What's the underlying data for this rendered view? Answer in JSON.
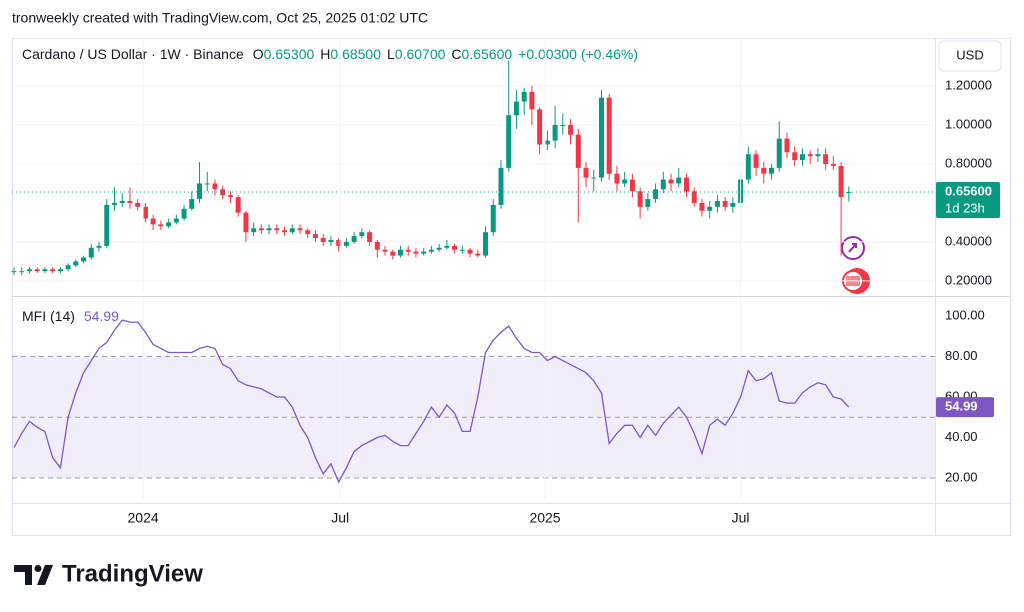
{
  "header": {
    "attribution": "tronweekly created with TradingView.com, Oct 25, 2025 01:02 UTC"
  },
  "footer": {
    "brand": "TradingView"
  },
  "chart_data": [
    {
      "type": "candlestick",
      "title": "Cardano / US Dollar · 1W · Binance",
      "legend": [
        {
          "label": "O",
          "value": "0.65300"
        },
        {
          "label": "H",
          "value": "0.68500"
        },
        {
          "label": "L",
          "value": "0.60700"
        },
        {
          "label": "C",
          "value": "0.65600"
        }
      ],
      "change": "+0.00300 (+0.46%)",
      "currency": "USD",
      "last_price_label": "0.65600",
      "countdown": "1d 23h",
      "colors": {
        "up": "#089981",
        "down": "#f23645"
      },
      "open": [
        0.25,
        0.25,
        0.25,
        0.26,
        0.25,
        0.26,
        0.25,
        0.26,
        0.28,
        0.3,
        0.32,
        0.37,
        0.38,
        0.59,
        0.6,
        0.61,
        0.6,
        0.58,
        0.52,
        0.49,
        0.48,
        0.5,
        0.52,
        0.57,
        0.62,
        0.7,
        0.7,
        0.67,
        0.64,
        0.63,
        0.55,
        0.45,
        0.47,
        0.46,
        0.47,
        0.46,
        0.45,
        0.47,
        0.46,
        0.44,
        0.42,
        0.4,
        0.41,
        0.38,
        0.4,
        0.43,
        0.45,
        0.4,
        0.36,
        0.35,
        0.33,
        0.36,
        0.35,
        0.34,
        0.35,
        0.36,
        0.37,
        0.38,
        0.36,
        0.36,
        0.34,
        0.33,
        0.45,
        0.59,
        0.78,
        1.05,
        1.12,
        1.17,
        1.08,
        0.9,
        0.92,
        1.0,
        1.0,
        0.95,
        0.78,
        0.73,
        0.73,
        1.14,
        0.75,
        0.7,
        0.72,
        0.66,
        0.58,
        0.62,
        0.67,
        0.72,
        0.7,
        0.73,
        0.66,
        0.6,
        0.56,
        0.58,
        0.61,
        0.58,
        0.6,
        0.72,
        0.85,
        0.78,
        0.75,
        0.78,
        0.93,
        0.86,
        0.82,
        0.85,
        0.84,
        0.85,
        0.8,
        0.79,
        0.653
      ],
      "high": [
        0.27,
        0.27,
        0.27,
        0.27,
        0.27,
        0.27,
        0.27,
        0.29,
        0.31,
        0.33,
        0.39,
        0.4,
        0.62,
        0.68,
        0.65,
        0.68,
        0.62,
        0.6,
        0.54,
        0.51,
        0.52,
        0.54,
        0.59,
        0.66,
        0.81,
        0.76,
        0.72,
        0.69,
        0.66,
        0.64,
        0.56,
        0.5,
        0.49,
        0.49,
        0.49,
        0.48,
        0.49,
        0.49,
        0.47,
        0.46,
        0.44,
        0.43,
        0.42,
        0.42,
        0.45,
        0.47,
        0.46,
        0.41,
        0.38,
        0.36,
        0.38,
        0.38,
        0.37,
        0.37,
        0.38,
        0.39,
        0.41,
        0.39,
        0.38,
        0.37,
        0.36,
        0.48,
        0.62,
        0.82,
        1.33,
        1.18,
        1.19,
        1.2,
        1.09,
        0.97,
        1.1,
        1.06,
        1.03,
        0.98,
        0.81,
        0.77,
        1.18,
        1.16,
        0.79,
        0.76,
        0.75,
        0.68,
        0.65,
        0.7,
        0.76,
        0.75,
        0.78,
        0.75,
        0.68,
        0.62,
        0.61,
        0.64,
        0.63,
        0.63,
        0.75,
        0.89,
        0.87,
        0.81,
        0.8,
        1.02,
        0.96,
        0.89,
        0.88,
        0.87,
        0.88,
        0.88,
        0.84,
        0.81,
        0.685
      ],
      "low": [
        0.23,
        0.23,
        0.24,
        0.24,
        0.24,
        0.24,
        0.24,
        0.25,
        0.27,
        0.29,
        0.31,
        0.35,
        0.37,
        0.56,
        0.58,
        0.57,
        0.56,
        0.5,
        0.46,
        0.46,
        0.47,
        0.49,
        0.51,
        0.56,
        0.6,
        0.66,
        0.64,
        0.62,
        0.6,
        0.53,
        0.4,
        0.43,
        0.44,
        0.44,
        0.44,
        0.43,
        0.44,
        0.44,
        0.42,
        0.4,
        0.38,
        0.38,
        0.35,
        0.37,
        0.39,
        0.42,
        0.38,
        0.32,
        0.33,
        0.31,
        0.32,
        0.33,
        0.32,
        0.33,
        0.34,
        0.35,
        0.36,
        0.34,
        0.34,
        0.32,
        0.32,
        0.32,
        0.43,
        0.57,
        0.76,
        0.98,
        1.05,
        1.0,
        0.85,
        0.87,
        0.88,
        0.95,
        0.9,
        0.5,
        0.68,
        0.66,
        0.71,
        0.72,
        0.66,
        0.68,
        0.63,
        0.52,
        0.56,
        0.6,
        0.65,
        0.66,
        0.68,
        0.63,
        0.58,
        0.53,
        0.52,
        0.55,
        0.56,
        0.55,
        0.58,
        0.7,
        0.74,
        0.7,
        0.72,
        0.76,
        0.83,
        0.79,
        0.79,
        0.8,
        0.81,
        0.77,
        0.77,
        0.33,
        0.607
      ],
      "close": [
        0.25,
        0.25,
        0.26,
        0.25,
        0.26,
        0.25,
        0.26,
        0.28,
        0.3,
        0.32,
        0.37,
        0.38,
        0.59,
        0.6,
        0.61,
        0.6,
        0.58,
        0.52,
        0.49,
        0.48,
        0.5,
        0.52,
        0.57,
        0.62,
        0.7,
        0.7,
        0.67,
        0.64,
        0.63,
        0.55,
        0.45,
        0.47,
        0.46,
        0.47,
        0.46,
        0.45,
        0.47,
        0.46,
        0.44,
        0.42,
        0.4,
        0.41,
        0.38,
        0.4,
        0.43,
        0.45,
        0.4,
        0.36,
        0.35,
        0.33,
        0.36,
        0.35,
        0.34,
        0.35,
        0.36,
        0.37,
        0.38,
        0.36,
        0.36,
        0.34,
        0.33,
        0.45,
        0.59,
        0.78,
        1.05,
        1.12,
        1.17,
        1.08,
        0.9,
        0.92,
        1.0,
        1.0,
        0.95,
        0.78,
        0.73,
        0.73,
        1.14,
        0.75,
        0.7,
        0.72,
        0.66,
        0.58,
        0.62,
        0.67,
        0.72,
        0.7,
        0.73,
        0.66,
        0.6,
        0.56,
        0.58,
        0.61,
        0.58,
        0.6,
        0.72,
        0.85,
        0.78,
        0.75,
        0.78,
        0.93,
        0.86,
        0.82,
        0.85,
        0.84,
        0.85,
        0.8,
        0.79,
        0.63,
        0.656
      ],
      "xlim": [
        -0.26,
        119.15
      ],
      "ylim": [
        0.138,
        1.436
      ],
      "yticks": [
        {
          "value": 0.2,
          "label": "0.20000"
        },
        {
          "value": 0.4,
          "label": "0.40000"
        },
        {
          "value": 0.8,
          "label": "0.80000"
        },
        {
          "value": 1.0,
          "label": "1.00000"
        },
        {
          "value": 1.2,
          "label": "1.20000"
        }
      ],
      "grid": true
    },
    {
      "type": "line",
      "series": [
        {
          "name": "MFI (14)",
          "color": "#7e57c2",
          "last_value_label": "54.99",
          "values": [
            35,
            42,
            48,
            45,
            43,
            30,
            25,
            50,
            62,
            72,
            78,
            84,
            87,
            93,
            98,
            97,
            97,
            92,
            86,
            84,
            82,
            82,
            82,
            82,
            84,
            85,
            84,
            76,
            74,
            68,
            66,
            65,
            64,
            62,
            60,
            60,
            55,
            46,
            40,
            30,
            22,
            27,
            18,
            25,
            33,
            36,
            38,
            40,
            41,
            38,
            36,
            36,
            42,
            48,
            55,
            50,
            56,
            52,
            43,
            43,
            60,
            82,
            88,
            92,
            95,
            89,
            84,
            82,
            82,
            78,
            80,
            78,
            76,
            74,
            72,
            68,
            62,
            37,
            42,
            46,
            46,
            40,
            46,
            41,
            47,
            51,
            55,
            50,
            42,
            32,
            46,
            49,
            46,
            52,
            60,
            73,
            68,
            69,
            72,
            58,
            57,
            57,
            62,
            65,
            67,
            66,
            60,
            59,
            54.99
          ]
        }
      ],
      "bands": {
        "upper": 80,
        "middle": 50,
        "lower": 20,
        "color": "#7e57c2"
      },
      "xlim": [
        -0.26,
        119.15
      ],
      "ylim": [
        9.1,
        109.4
      ],
      "yticks": [
        {
          "value": 20,
          "label": "20.00"
        },
        {
          "value": 40,
          "label": "40.00"
        },
        {
          "value": 60,
          "label": "60.00"
        },
        {
          "value": 80,
          "label": "80.00"
        },
        {
          "value": 100,
          "label": "100.00"
        }
      ],
      "xticks": [
        {
          "value": 16.7,
          "label": "2024"
        },
        {
          "value": 42.2,
          "label": "Jul"
        },
        {
          "value": 68.7,
          "label": "2025"
        },
        {
          "value": 94.0,
          "label": "Jul"
        }
      ],
      "grid": true
    }
  ]
}
